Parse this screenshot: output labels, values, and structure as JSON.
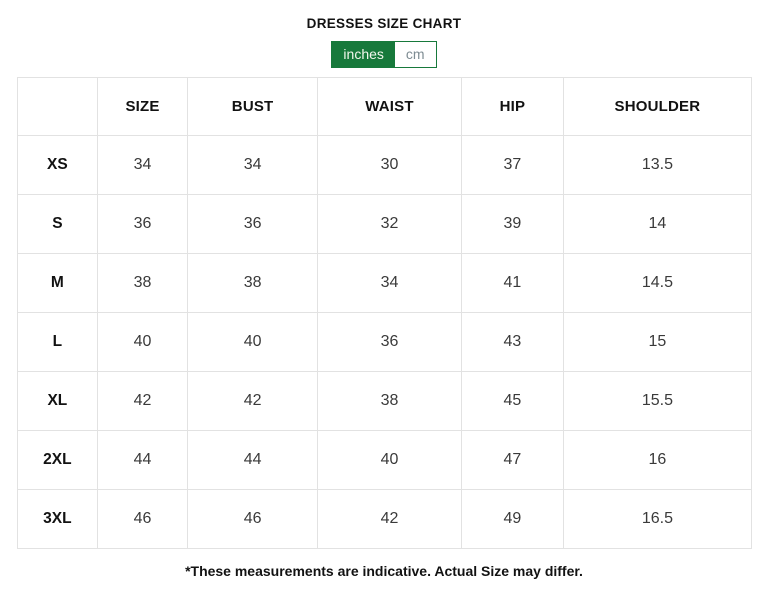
{
  "page": {
    "title": "DRESSES SIZE CHART",
    "footnote": "*These measurements are indicative. Actual Size may differ."
  },
  "unit_toggle": {
    "options": [
      {
        "label": "inches",
        "selected": true
      },
      {
        "label": "cm",
        "selected": false
      }
    ]
  },
  "table": {
    "columns": [
      "",
      "SIZE",
      "BUST",
      "WAIST",
      "HIP",
      "SHOULDER"
    ],
    "rows": [
      {
        "label": "XS",
        "values": [
          "34",
          "34",
          "30",
          "37",
          "13.5"
        ]
      },
      {
        "label": "S",
        "values": [
          "36",
          "36",
          "32",
          "39",
          "14"
        ]
      },
      {
        "label": "M",
        "values": [
          "38",
          "38",
          "34",
          "41",
          "14.5"
        ]
      },
      {
        "label": "L",
        "values": [
          "40",
          "40",
          "36",
          "43",
          "15"
        ]
      },
      {
        "label": "XL",
        "values": [
          "42",
          "42",
          "38",
          "45",
          "15.5"
        ]
      },
      {
        "label": "2XL",
        "values": [
          "44",
          "44",
          "40",
          "47",
          "16"
        ]
      },
      {
        "label": "3XL",
        "values": [
          "46",
          "46",
          "42",
          "49",
          "16.5"
        ]
      }
    ]
  },
  "colors": {
    "accent_green": "#17793B",
    "muted_text": "#7E8C93",
    "table_border": "#E2E2E2",
    "value_text": "#3A3A3A",
    "heading_text": "#121212",
    "background": "#FFFFFF"
  }
}
